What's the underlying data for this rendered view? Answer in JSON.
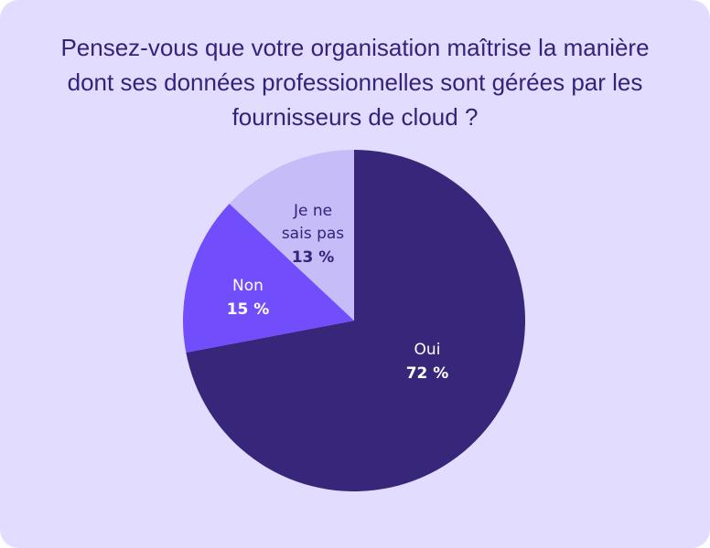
{
  "chart_data": {
    "type": "pie",
    "title_lines": [
      "Pensez-vous que votre organisation maîtrise la manière",
      "dont ses données professionnelles sont gérées par les",
      "fournisseurs de cloud ?"
    ],
    "slices": [
      {
        "label": "Oui",
        "value": 72,
        "value_label": "72 %",
        "color": "#37267a",
        "text_color": "#ffffff"
      },
      {
        "label": "Non",
        "value": 15,
        "value_label": "15 %",
        "color": "#724dfc",
        "text_color": "#ffffff"
      },
      {
        "label_lines": [
          "Je ne",
          "sais pas"
        ],
        "value": 13,
        "value_label": "13 %",
        "color": "#c6bcf7",
        "text_color": "#35227a"
      }
    ]
  },
  "colors": {
    "background": "#e2dcff",
    "title": "#35227a"
  }
}
